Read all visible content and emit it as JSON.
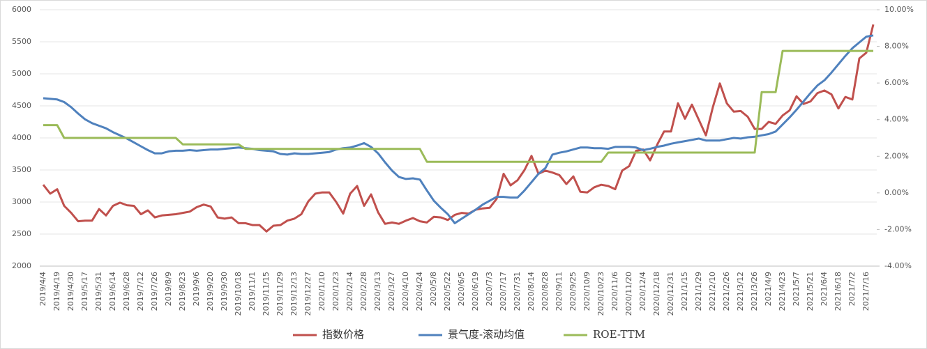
{
  "chart_data": {
    "type": "line",
    "categories": [
      "2019/4/4",
      null,
      "2019/4/19",
      null,
      "2019/4/30",
      null,
      "2019/5/17",
      null,
      "2019/5/31",
      null,
      "2019/6/14",
      null,
      "2019/6/28",
      null,
      "2019/7/12",
      null,
      "2019/7/26",
      null,
      "2019/8/9",
      null,
      "2019/8/23",
      null,
      "2019/9/6",
      null,
      "2019/9/20",
      null,
      "2019/9/30",
      null,
      "2019/10/18",
      null,
      "2019/11/1",
      null,
      "2019/11/15",
      null,
      "2019/11/29",
      null,
      "2019/12/13",
      null,
      "2019/12/27",
      null,
      "2020/1/10",
      null,
      "2020/1/23",
      null,
      "2020/2/14",
      null,
      "2020/2/28",
      null,
      "2020/3/13",
      null,
      "2020/3/27",
      null,
      "2020/4/10",
      null,
      "2020/4/24",
      null,
      "2020/5/8",
      null,
      "2020/5/22",
      null,
      "2020/6/5",
      null,
      "2020/6/19",
      null,
      "2020/7/3",
      null,
      "2020/7/17",
      null,
      "2020/7/31",
      null,
      "2020/8/14",
      null,
      "2020/8/28",
      null,
      "2020/9/11",
      null,
      "2020/9/25",
      null,
      "2020/10/9",
      null,
      "2020/10/23",
      null,
      "2020/11/6",
      null,
      "2020/11/20",
      null,
      "2020/12/4",
      null,
      "2020/12/18",
      null,
      "2020/12/31",
      null,
      "2021/1/15",
      null,
      "2021/1/29",
      null,
      "2021/2/10",
      null,
      "2021/2/26",
      null,
      "2021/3/12",
      null,
      "2021/3/26",
      null,
      "2021/4/9",
      null,
      "2021/4/23",
      null,
      "2021/5/7",
      null,
      "2021/5/21",
      null,
      "2021/6/4",
      null,
      "2021/6/18",
      null,
      "2021/7/2",
      null,
      "2021/7/16",
      null
    ],
    "series": [
      {
        "name": "指数价格",
        "color": "#c0504d",
        "values": [
          3270,
          3130,
          3200,
          2940,
          2830,
          2700,
          2710,
          2710,
          2890,
          2790,
          2940,
          2990,
          2950,
          2940,
          2810,
          2870,
          2760,
          2790,
          2800,
          2810,
          2830,
          2850,
          2920,
          2960,
          2930,
          2760,
          2740,
          2760,
          2670,
          2670,
          2640,
          2640,
          2540,
          2630,
          2640,
          2710,
          2740,
          2810,
          3010,
          3130,
          3150,
          3150,
          3000,
          2820,
          3130,
          3250,
          2940,
          3120,
          2840,
          2660,
          2680,
          2660,
          2710,
          2750,
          2700,
          2680,
          2770,
          2760,
          2720,
          2800,
          2830,
          2820,
          2880,
          2900,
          2910,
          3050,
          3440,
          3260,
          3340,
          3500,
          3720,
          3440,
          3490,
          3460,
          3420,
          3280,
          3400,
          3160,
          3150,
          3230,
          3270,
          3250,
          3200,
          3490,
          3560,
          3800,
          3820,
          3650,
          3890,
          4100,
          4100,
          4540,
          4300,
          4520,
          4280,
          4040,
          4480,
          4850,
          4540,
          4410,
          4420,
          4330,
          4140,
          4140,
          4250,
          4220,
          4350,
          4430,
          4650,
          4530,
          4570,
          4700,
          4740,
          4680,
          4460,
          4640,
          4600,
          5240,
          5330,
          5770
        ]
      },
      {
        "name": "景气度-滚动均值",
        "color": "#4f81bd",
        "values": [
          4620,
          4610,
          4600,
          4560,
          4480,
          4380,
          4290,
          4230,
          4190,
          4150,
          4090,
          4040,
          3990,
          3930,
          3870,
          3810,
          3760,
          3760,
          3790,
          3800,
          3800,
          3810,
          3800,
          3810,
          3820,
          3820,
          3830,
          3840,
          3850,
          3840,
          3830,
          3810,
          3800,
          3790,
          3750,
          3740,
          3760,
          3750,
          3750,
          3760,
          3770,
          3780,
          3820,
          3840,
          3850,
          3880,
          3920,
          3860,
          3760,
          3620,
          3490,
          3390,
          3360,
          3370,
          3350,
          3180,
          3020,
          2910,
          2810,
          2670,
          2740,
          2810,
          2880,
          2960,
          3020,
          3080,
          3080,
          3070,
          3070,
          3180,
          3310,
          3440,
          3530,
          3740,
          3770,
          3790,
          3820,
          3850,
          3850,
          3840,
          3840,
          3830,
          3860,
          3860,
          3860,
          3850,
          3810,
          3830,
          3860,
          3880,
          3910,
          3930,
          3950,
          3970,
          3990,
          3960,
          3960,
          3960,
          3980,
          4000,
          3990,
          4010,
          4020,
          4040,
          4060,
          4100,
          4210,
          4320,
          4440,
          4570,
          4700,
          4820,
          4900,
          5020,
          5150,
          5280,
          5400,
          5490,
          5580,
          5600
        ]
      },
      {
        "name": "ROE-TTM",
        "color": "#9bbb59",
        "axis": "y2",
        "values": [
          3.7,
          3.7,
          3.7,
          3.0,
          3.0,
          3.0,
          3.0,
          3.0,
          3.0,
          3.0,
          3.0,
          3.0,
          3.0,
          3.0,
          3.0,
          3.0,
          3.0,
          3.0,
          3.0,
          3.0,
          2.65,
          2.65,
          2.65,
          2.65,
          2.65,
          2.65,
          2.65,
          2.65,
          2.65,
          2.4,
          2.4,
          2.4,
          2.4,
          2.4,
          2.4,
          2.4,
          2.4,
          2.4,
          2.4,
          2.4,
          2.4,
          2.4,
          2.4,
          2.4,
          2.4,
          2.4,
          2.4,
          2.4,
          2.4,
          2.4,
          2.4,
          2.4,
          2.4,
          2.4,
          2.4,
          1.7,
          1.7,
          1.7,
          1.7,
          1.7,
          1.7,
          1.7,
          1.7,
          1.7,
          1.7,
          1.7,
          1.7,
          1.7,
          1.7,
          1.7,
          1.7,
          1.7,
          1.7,
          1.7,
          1.7,
          1.7,
          1.7,
          1.7,
          1.7,
          1.7,
          1.7,
          2.2,
          2.2,
          2.2,
          2.2,
          2.2,
          2.2,
          2.2,
          2.2,
          2.2,
          2.2,
          2.2,
          2.2,
          2.2,
          2.2,
          2.2,
          2.2,
          2.2,
          2.2,
          2.2,
          2.2,
          2.2,
          2.2,
          5.5,
          5.5,
          5.5,
          7.75,
          7.75,
          7.75,
          7.75,
          7.75,
          7.75,
          7.75,
          7.75,
          7.75,
          7.75,
          7.75,
          7.75,
          7.75,
          7.75
        ]
      }
    ],
    "ylim": [
      2000,
      6000
    ],
    "yticks": [
      2000,
      2500,
      3000,
      3500,
      4000,
      4500,
      5000,
      5500,
      6000
    ],
    "y2lim": [
      -4,
      10
    ],
    "y2ticks": [
      {
        "value": -4,
        "label": "-4.00%"
      },
      {
        "value": -2,
        "label": "-2.00%"
      },
      {
        "value": 0,
        "label": "0.00%"
      },
      {
        "value": 2,
        "label": "2.00%"
      },
      {
        "value": 4,
        "label": "4.00%"
      },
      {
        "value": 6,
        "label": "6.00%"
      },
      {
        "value": 8,
        "label": "8.00%"
      },
      {
        "value": 10,
        "label": "10.00%"
      }
    ],
    "grid": true,
    "legend": "bottom"
  }
}
